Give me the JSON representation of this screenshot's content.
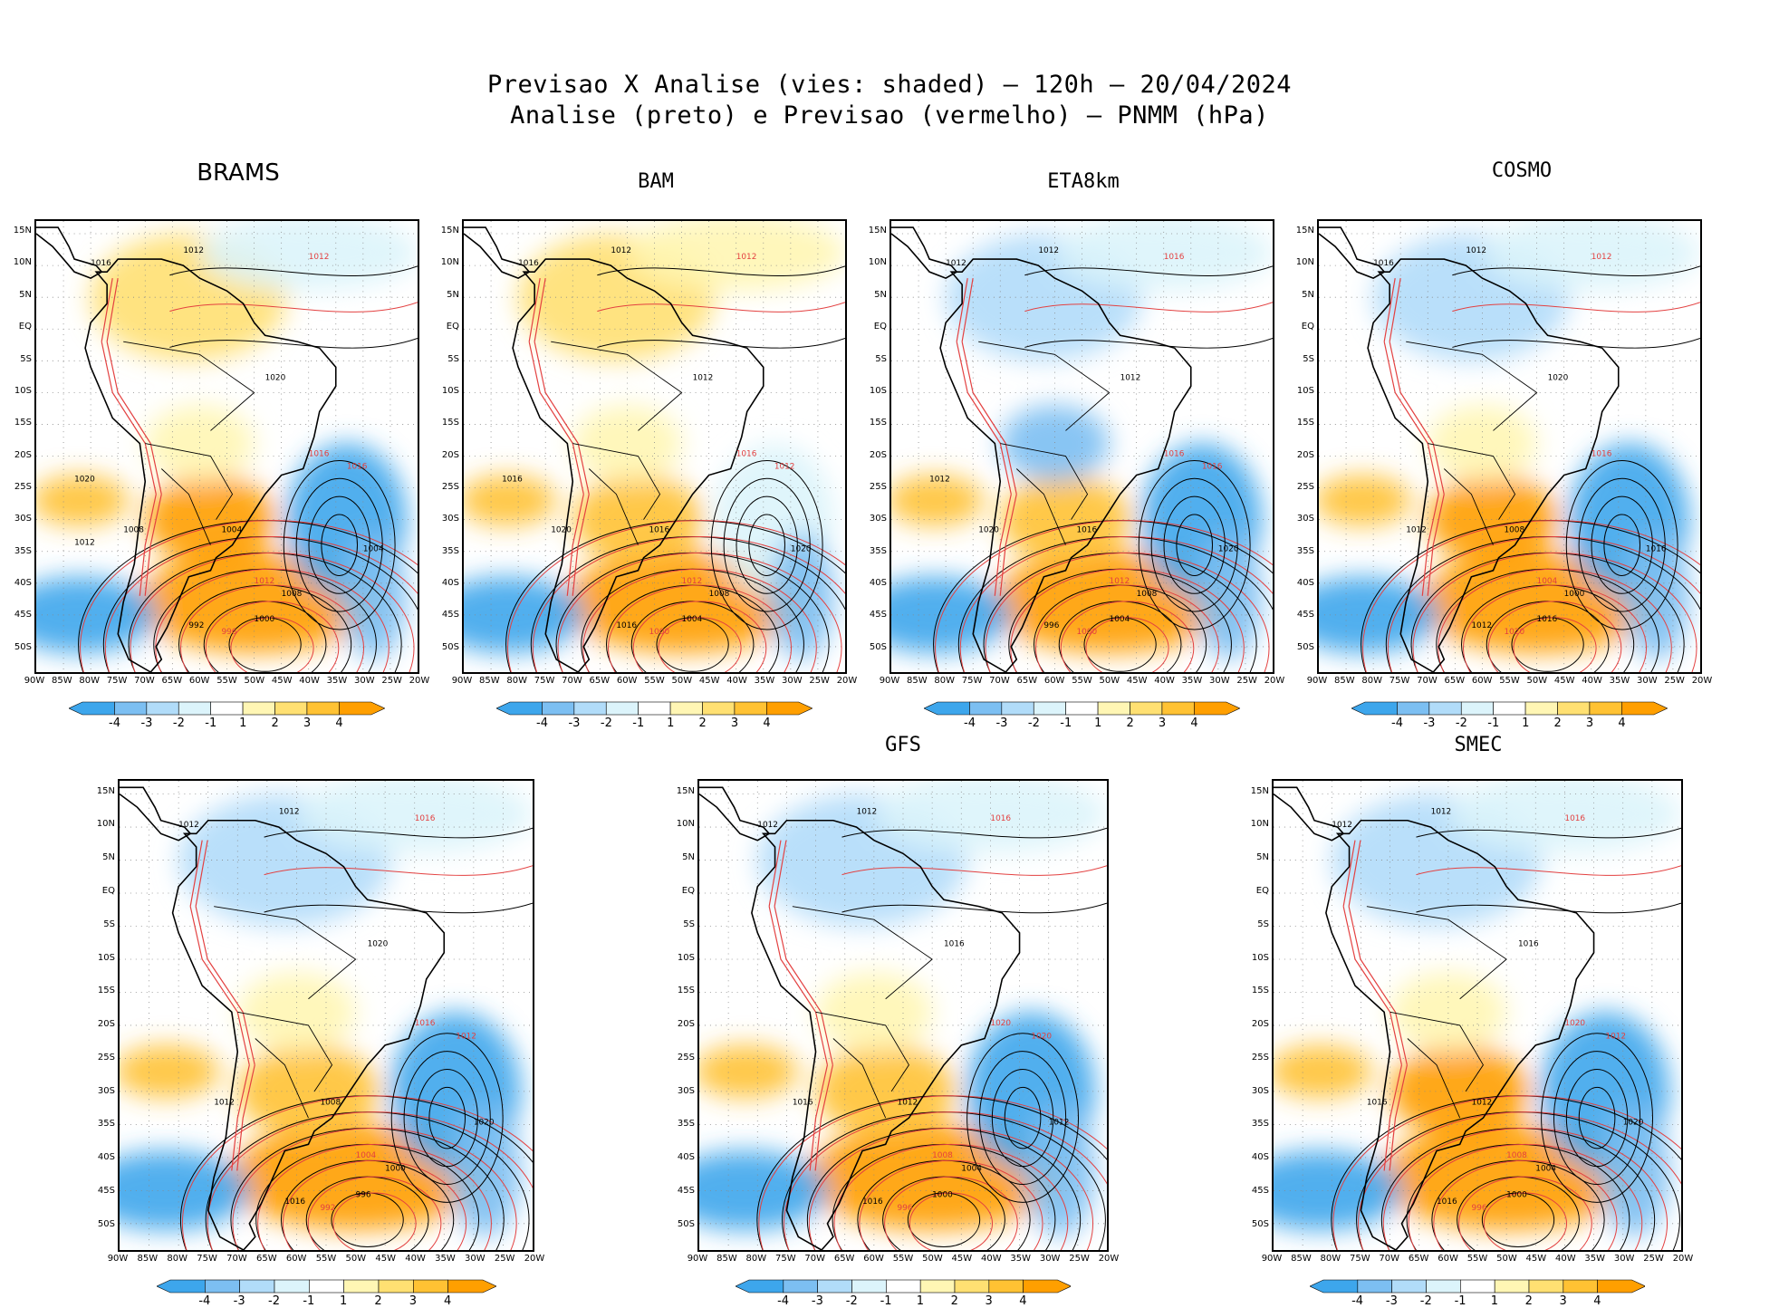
{
  "title": {
    "line1": "Previsao X Analise (vies: shaded) – 120h – 20/04/2024",
    "line2": "Analise (preto) e Previsao (vermelho) – PNMM (hPa)"
  },
  "lat_labels": [
    "15N",
    "10N",
    "5N",
    "EQ",
    "5S",
    "10S",
    "15S",
    "20S",
    "25S",
    "30S",
    "35S",
    "40S",
    "45S",
    "50S"
  ],
  "lon_labels": [
    "90W",
    "85W",
    "80W",
    "75W",
    "70W",
    "65W",
    "60W",
    "55W",
    "50W",
    "45W",
    "40W",
    "35W",
    "30W",
    "25W",
    "20W"
  ],
  "colorbar": {
    "ticks": [
      "-4",
      "-3",
      "-2",
      "-1",
      "1",
      "2",
      "3",
      "4"
    ],
    "colors": [
      "#3da6ec",
      "#7cbff2",
      "#b1dcf9",
      "#dcf4fb",
      "#ffffff",
      "#fff6b4",
      "#ffe072",
      "#ffc233",
      "#ff9f00"
    ]
  },
  "panels": [
    {
      "name": "BRAMS",
      "labels": [
        "1012",
        "1012",
        "1016",
        "1020",
        "1016",
        "1008",
        "1004",
        "1012",
        "1008",
        "1000",
        "996",
        "992",
        "1004",
        "1016",
        "1020",
        "1012"
      ]
    },
    {
      "name": "BAM",
      "labels": [
        "1012",
        "1012",
        "1016",
        "1012",
        "1016",
        "1020",
        "1016",
        "1012",
        "1008",
        "1004",
        "1000",
        "1016",
        "1020",
        "1012",
        "1016"
      ]
    },
    {
      "name": "ETA8km",
      "labels": [
        "1012",
        "1016",
        "1012",
        "1012",
        "1016",
        "1020",
        "1016",
        "1012",
        "1008",
        "1004",
        "1000",
        "996",
        "1020",
        "1016",
        "1012"
      ]
    },
    {
      "name": "COSMO",
      "labels": [
        "1012",
        "1012",
        "1016",
        "1020",
        "1016",
        "1012",
        "1008",
        "1004",
        "1000",
        "1016",
        "1020",
        "1012",
        "1016"
      ]
    },
    {
      "name": "",
      "labels": [
        "1012",
        "1016",
        "1012",
        "1020",
        "1016",
        "1012",
        "1008",
        "1004",
        "1000",
        "996",
        "992",
        "1016",
        "1020",
        "1012"
      ]
    },
    {
      "name": "GFS",
      "labels": [
        "1012",
        "1016",
        "1012",
        "1016",
        "1020",
        "1016",
        "1012",
        "1008",
        "1004",
        "1000",
        "996",
        "1016",
        "1012",
        "1020"
      ]
    },
    {
      "name": "SMEC",
      "labels": [
        "1012",
        "1016",
        "1012",
        "1016",
        "1020",
        "1016",
        "1012",
        "1008",
        "1004",
        "1000",
        "996",
        "1016",
        "1020",
        "1012"
      ]
    }
  ]
}
